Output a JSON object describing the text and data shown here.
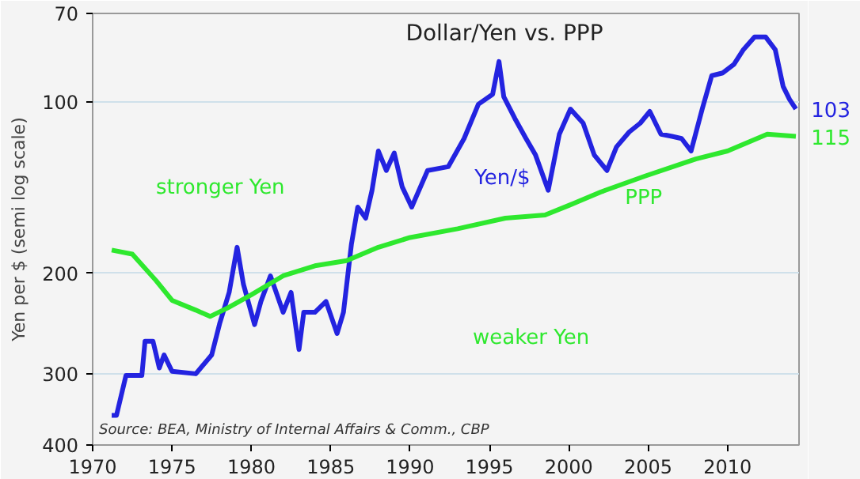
{
  "chart_data": {
    "type": "line",
    "title": "Dollar/Yen vs. PPP",
    "ylabel": "Yen per $ (semi log scale)",
    "log": "y",
    "grid": "y",
    "legend": false,
    "marker": "none",
    "line_style": "solid",
    "xlim": [
      1970,
      2014.5
    ],
    "xticks": [
      1970,
      1975,
      1980,
      1985,
      1990,
      1995,
      2000,
      2005,
      2010
    ],
    "ylim": [
      400,
      70
    ],
    "yticks": [
      70,
      100,
      200,
      300,
      400
    ],
    "series": [
      {
        "name": "Yen/$",
        "color": "#2323e0",
        "x": [
          1971.2,
          1971.5,
          1972.1,
          1973.1,
          1973.3,
          1973.8,
          1974.2,
          1974.5,
          1975,
          1976.5,
          1977.5,
          1978,
          1978.6,
          1979.1,
          1979.5,
          1980.2,
          1980.6,
          1981.2,
          1982,
          1982.5,
          1983,
          1983.3,
          1984,
          1984.7,
          1985.4,
          1985.8,
          1986.3,
          1986.7,
          1987.2,
          1987.6,
          1988,
          1988.5,
          1989,
          1989.5,
          1990.1,
          1991.1,
          1992.4,
          1993.4,
          1994.3,
          1995.2,
          1995.6,
          1995.9,
          1996.6,
          1997.3,
          1997.9,
          1998.7,
          1999.4,
          2000.1,
          2000.9,
          2001.6,
          2002.4,
          2003.0,
          2003.8,
          2004.5,
          2005.1,
          2005.8,
          2006.5,
          2007.1,
          2007.7,
          2008.4,
          2009.0,
          2009.7,
          2010.4,
          2011.0,
          2011.7,
          2012.4,
          2013.0,
          2013.5,
          2013.9,
          2014.3
        ],
        "value_labels": [
          null,
          null,
          null,
          null,
          null,
          null,
          null,
          null,
          null,
          null,
          null,
          null,
          null,
          null,
          null,
          null,
          null,
          null,
          null,
          null,
          null,
          null,
          null,
          null,
          null,
          null,
          null,
          null,
          null,
          null,
          null,
          null,
          null,
          null,
          null,
          null,
          null,
          null,
          null,
          null,
          null,
          null,
          null,
          null,
          null,
          null,
          null,
          null,
          null,
          null,
          null,
          null,
          null,
          null,
          null,
          null,
          null,
          null,
          null,
          null,
          null,
          null,
          null,
          null,
          null,
          null,
          null,
          null,
          null,
          "103"
        ],
        "values": [
          355,
          355,
          302,
          302,
          263,
          263,
          293,
          278,
          297,
          300,
          278,
          245,
          216,
          180,
          209,
          246,
          224,
          202,
          234,
          216,
          272,
          234,
          234,
          224,
          255,
          234,
          178,
          153,
          160,
          143,
          122,
          132,
          123,
          141,
          153,
          132,
          130,
          116,
          101,
          97,
          85,
          98,
          107,
          116,
          124,
          143,
          114,
          103,
          109,
          124,
          132,
          120,
          113,
          109,
          104,
          114,
          115,
          116,
          122,
          103,
          90,
          89,
          86,
          81,
          77,
          77,
          81,
          94,
          99,
          103
        ]
      },
      {
        "name": "PPP",
        "color": "#2ee82e",
        "x": [
          1971.2,
          1972.5,
          1974,
          1975,
          1976.5,
          1977.4,
          1978.5,
          1980,
          1982,
          1984,
          1986,
          1988,
          1990,
          1993,
          1996,
          1998.5,
          2000,
          2002,
          2004.8,
          2008,
          2010,
          2012.5,
          2014.3
        ],
        "value_labels": [
          null,
          null,
          null,
          null,
          null,
          null,
          null,
          null,
          null,
          null,
          null,
          null,
          null,
          null,
          null,
          null,
          null,
          null,
          null,
          null,
          null,
          null,
          "115"
        ],
        "values": [
          182,
          185,
          206,
          223,
          232,
          238,
          230,
          218,
          202,
          194,
          190,
          180,
          173,
          167,
          160,
          158,
          152,
          144,
          135,
          126,
          122,
          114,
          115
        ]
      }
    ],
    "annotations": [
      "stronger Yen",
      "weaker Yen",
      "Source: BEA, Ministry of Internal Affairs & Comm., CBP"
    ]
  }
}
